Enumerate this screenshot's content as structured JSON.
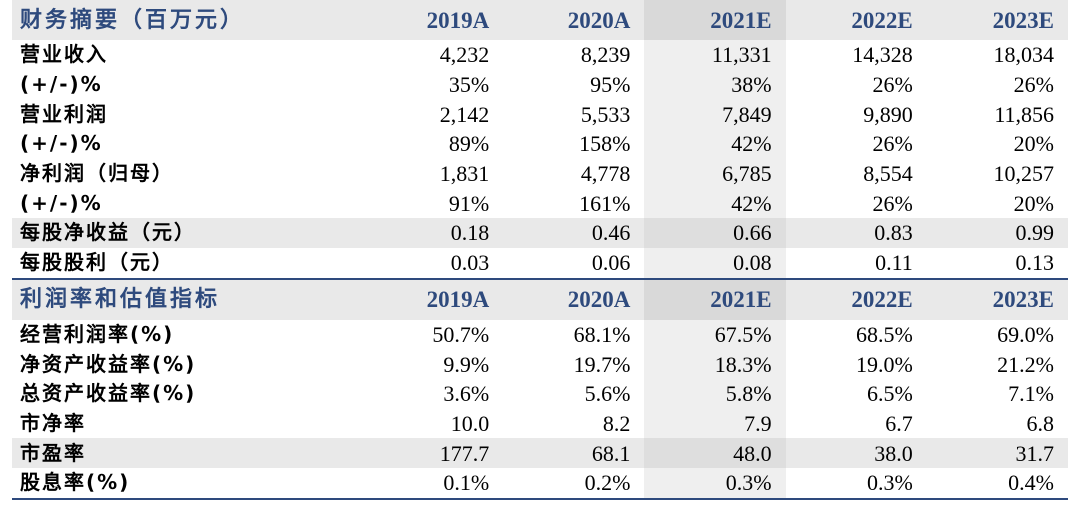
{
  "columns": [
    "2019A",
    "2020A",
    "2021E",
    "2022E",
    "2023E"
  ],
  "section1": {
    "title": "财务摘要（百万元）",
    "rows": [
      {
        "label": "营业收入",
        "values": [
          "4,232",
          "8,239",
          "11,331",
          "14,328",
          "18,034"
        ],
        "shaded": false
      },
      {
        "label": "(+/-)%",
        "values": [
          "35%",
          "95%",
          "38%",
          "26%",
          "26%"
        ],
        "shaded": false
      },
      {
        "label": "营业利润",
        "values": [
          "2,142",
          "5,533",
          "7,849",
          "9,890",
          "11,856"
        ],
        "shaded": false
      },
      {
        "label": "(+/-)%",
        "values": [
          "89%",
          "158%",
          "42%",
          "26%",
          "20%"
        ],
        "shaded": false
      },
      {
        "label": "净利润（归母）",
        "values": [
          "1,831",
          "4,778",
          "6,785",
          "8,554",
          "10,257"
        ],
        "shaded": false
      },
      {
        "label": "(+/-)%",
        "values": [
          "91%",
          "161%",
          "42%",
          "26%",
          "20%"
        ],
        "shaded": false
      },
      {
        "label": "每股净收益（元）",
        "values": [
          "0.18",
          "0.46",
          "0.66",
          "0.83",
          "0.99"
        ],
        "shaded": true
      },
      {
        "label": "每股股利（元）",
        "values": [
          "0.03",
          "0.06",
          "0.08",
          "0.11",
          "0.13"
        ],
        "shaded": false
      }
    ]
  },
  "section2": {
    "title": "利润率和估值指标",
    "rows": [
      {
        "label": "经营利润率(%)",
        "values": [
          "50.7%",
          "68.1%",
          "67.5%",
          "68.5%",
          "69.0%"
        ],
        "shaded": false
      },
      {
        "label": "净资产收益率(%)",
        "values": [
          "9.9%",
          "19.7%",
          "18.3%",
          "19.0%",
          "21.2%"
        ],
        "shaded": false
      },
      {
        "label": "总资产收益率(%)",
        "values": [
          "3.6%",
          "5.6%",
          "5.8%",
          "6.5%",
          "7.1%"
        ],
        "shaded": false
      },
      {
        "label": "市净率",
        "values": [
          "10.0",
          "8.2",
          "7.9",
          "6.7",
          "6.8"
        ],
        "shaded": false
      },
      {
        "label": "市盈率",
        "values": [
          "177.7",
          "68.1",
          "48.0",
          "38.0",
          "31.7"
        ],
        "shaded": true
      },
      {
        "label": "股息率(%)",
        "values": [
          "0.1%",
          "0.2%",
          "0.3%",
          "0.3%",
          "0.4%"
        ],
        "shaded": false
      }
    ]
  }
}
